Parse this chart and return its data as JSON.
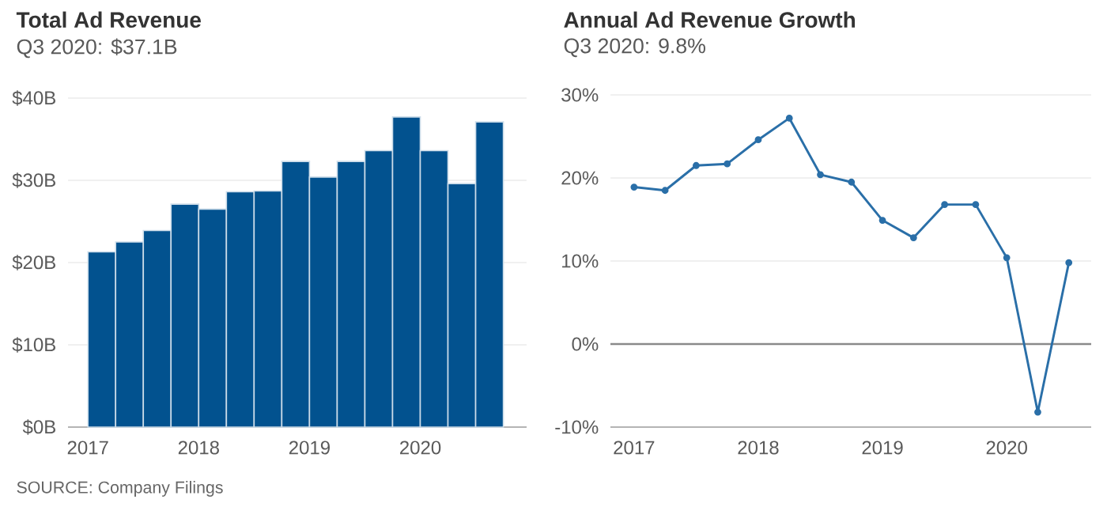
{
  "chart_data": [
    {
      "type": "bar",
      "title": "Total Ad Revenue",
      "subtitle": "Q3 2020: $37.1B",
      "x": [
        2017.125,
        2017.375,
        2017.625,
        2017.875,
        2018.125,
        2018.375,
        2018.625,
        2018.875,
        2019.125,
        2019.375,
        2019.625,
        2019.875,
        2020.125,
        2020.375,
        2020.625
      ],
      "values": [
        21.3,
        22.5,
        23.9,
        27.1,
        26.5,
        28.6,
        28.7,
        32.3,
        30.4,
        32.3,
        33.6,
        37.7,
        33.6,
        29.6,
        37.1
      ],
      "color": "#02528f",
      "xlim": [
        2016.82,
        2020.96
      ],
      "xticks": [
        2017,
        2018,
        2019,
        2020
      ],
      "ylim": [
        0,
        40
      ],
      "yticks": [
        {
          "value": 0,
          "label": "$0B"
        },
        {
          "value": 10,
          "label": "$10B"
        },
        {
          "value": 20,
          "label": "$20B"
        },
        {
          "value": 30,
          "label": "$30B"
        },
        {
          "value": 40,
          "label": "$40B"
        }
      ],
      "grid": "y",
      "annotations": [
        "SOURCE: Company Filings"
      ]
    },
    {
      "type": "line",
      "title": "Annual Ad Revenue Growth",
      "subtitle": "Q3 2020: 9.8%",
      "x": [
        2017,
        2017.25,
        2017.5,
        2017.75,
        2018,
        2018.25,
        2018.5,
        2018.75,
        2019,
        2019.25,
        2019.5,
        2019.75,
        2020,
        2020.25,
        2020.5
      ],
      "values": [
        18.9,
        18.5,
        21.5,
        21.7,
        24.6,
        27.2,
        20.4,
        19.5,
        14.9,
        12.8,
        16.8,
        16.8,
        10.4,
        -8.2,
        9.8
      ],
      "color": "#2a6fa8",
      "marker": "circle",
      "xlim": [
        2016.81,
        2020.68
      ],
      "xticks": [
        2017,
        2018,
        2019,
        2020
      ],
      "ylim": [
        -10,
        30
      ],
      "yticks": [
        {
          "value": -10,
          "label": "-10%"
        },
        {
          "value": 0,
          "label": "0%"
        },
        {
          "value": 10,
          "label": "10%"
        },
        {
          "value": 20,
          "label": "20%"
        },
        {
          "value": 30,
          "label": "30%"
        }
      ],
      "grid": "y",
      "ref_lines": [
        {
          "axis": "y",
          "value": 0,
          "color": "#8a8a8a"
        }
      ]
    }
  ]
}
